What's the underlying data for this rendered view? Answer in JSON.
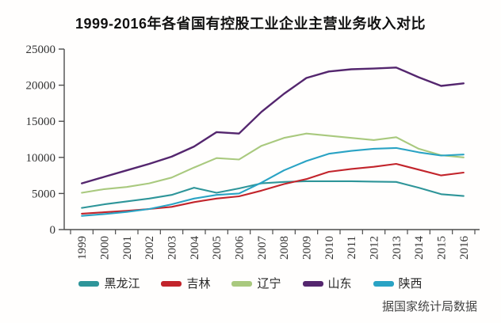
{
  "title": "1999-2016年各省国有控股工业企业主营业务收入对比",
  "source_note": "据国家统计局数据",
  "chart_data": {
    "type": "line",
    "x": [
      1999,
      2000,
      2001,
      2002,
      2003,
      2004,
      2005,
      2006,
      2007,
      2008,
      2009,
      2010,
      2011,
      2012,
      2013,
      2014,
      2015,
      2016
    ],
    "series": [
      {
        "key": "heilongjiang",
        "name": "黑龙江",
        "color": "#2e9599",
        "values": [
          3000,
          3500,
          3900,
          4300,
          4800,
          5800,
          5100,
          5700,
          6400,
          6600,
          6700,
          6700,
          6700,
          6650,
          6600,
          5800,
          4900,
          4650
        ]
      },
      {
        "key": "jilin",
        "name": "吉林",
        "color": "#c2242b",
        "values": [
          2200,
          2400,
          2600,
          2850,
          3150,
          3800,
          4300,
          4600,
          5400,
          6300,
          7000,
          8000,
          8400,
          8700,
          9100,
          8300,
          7500,
          7900
        ]
      },
      {
        "key": "liaoning",
        "name": "辽宁",
        "color": "#a9c97e",
        "values": [
          5100,
          5600,
          5900,
          6400,
          7200,
          8600,
          9900,
          9700,
          11600,
          12700,
          13300,
          13000,
          12700,
          12400,
          12800,
          11200,
          10300,
          10000
        ]
      },
      {
        "key": "shandong",
        "name": "山东",
        "color": "#54266e",
        "values": [
          6400,
          7300,
          8200,
          9100,
          10100,
          11500,
          13500,
          13300,
          16300,
          18800,
          21000,
          21900,
          22200,
          22300,
          22450,
          21100,
          19900,
          20250
        ]
      },
      {
        "key": "shaanxi",
        "name": "陕西",
        "color": "#2aa3c4",
        "values": [
          1900,
          2150,
          2450,
          2850,
          3500,
          4300,
          4800,
          5000,
          6500,
          8200,
          9500,
          10500,
          10900,
          11200,
          11300,
          10700,
          10250,
          10400
        ]
      }
    ],
    "title": "1999-2016年各省国有控股工业企业主营业务收入对比",
    "xlabel": "",
    "ylabel": "",
    "ylim": [
      0,
      25000
    ],
    "yticks": [
      0,
      5000,
      10000,
      15000,
      20000,
      25000
    ],
    "y_tick_labels": [
      "0",
      "5000",
      "10000",
      "15000",
      "20000",
      "25000"
    ],
    "grid": false,
    "legend_position": "bottom"
  }
}
